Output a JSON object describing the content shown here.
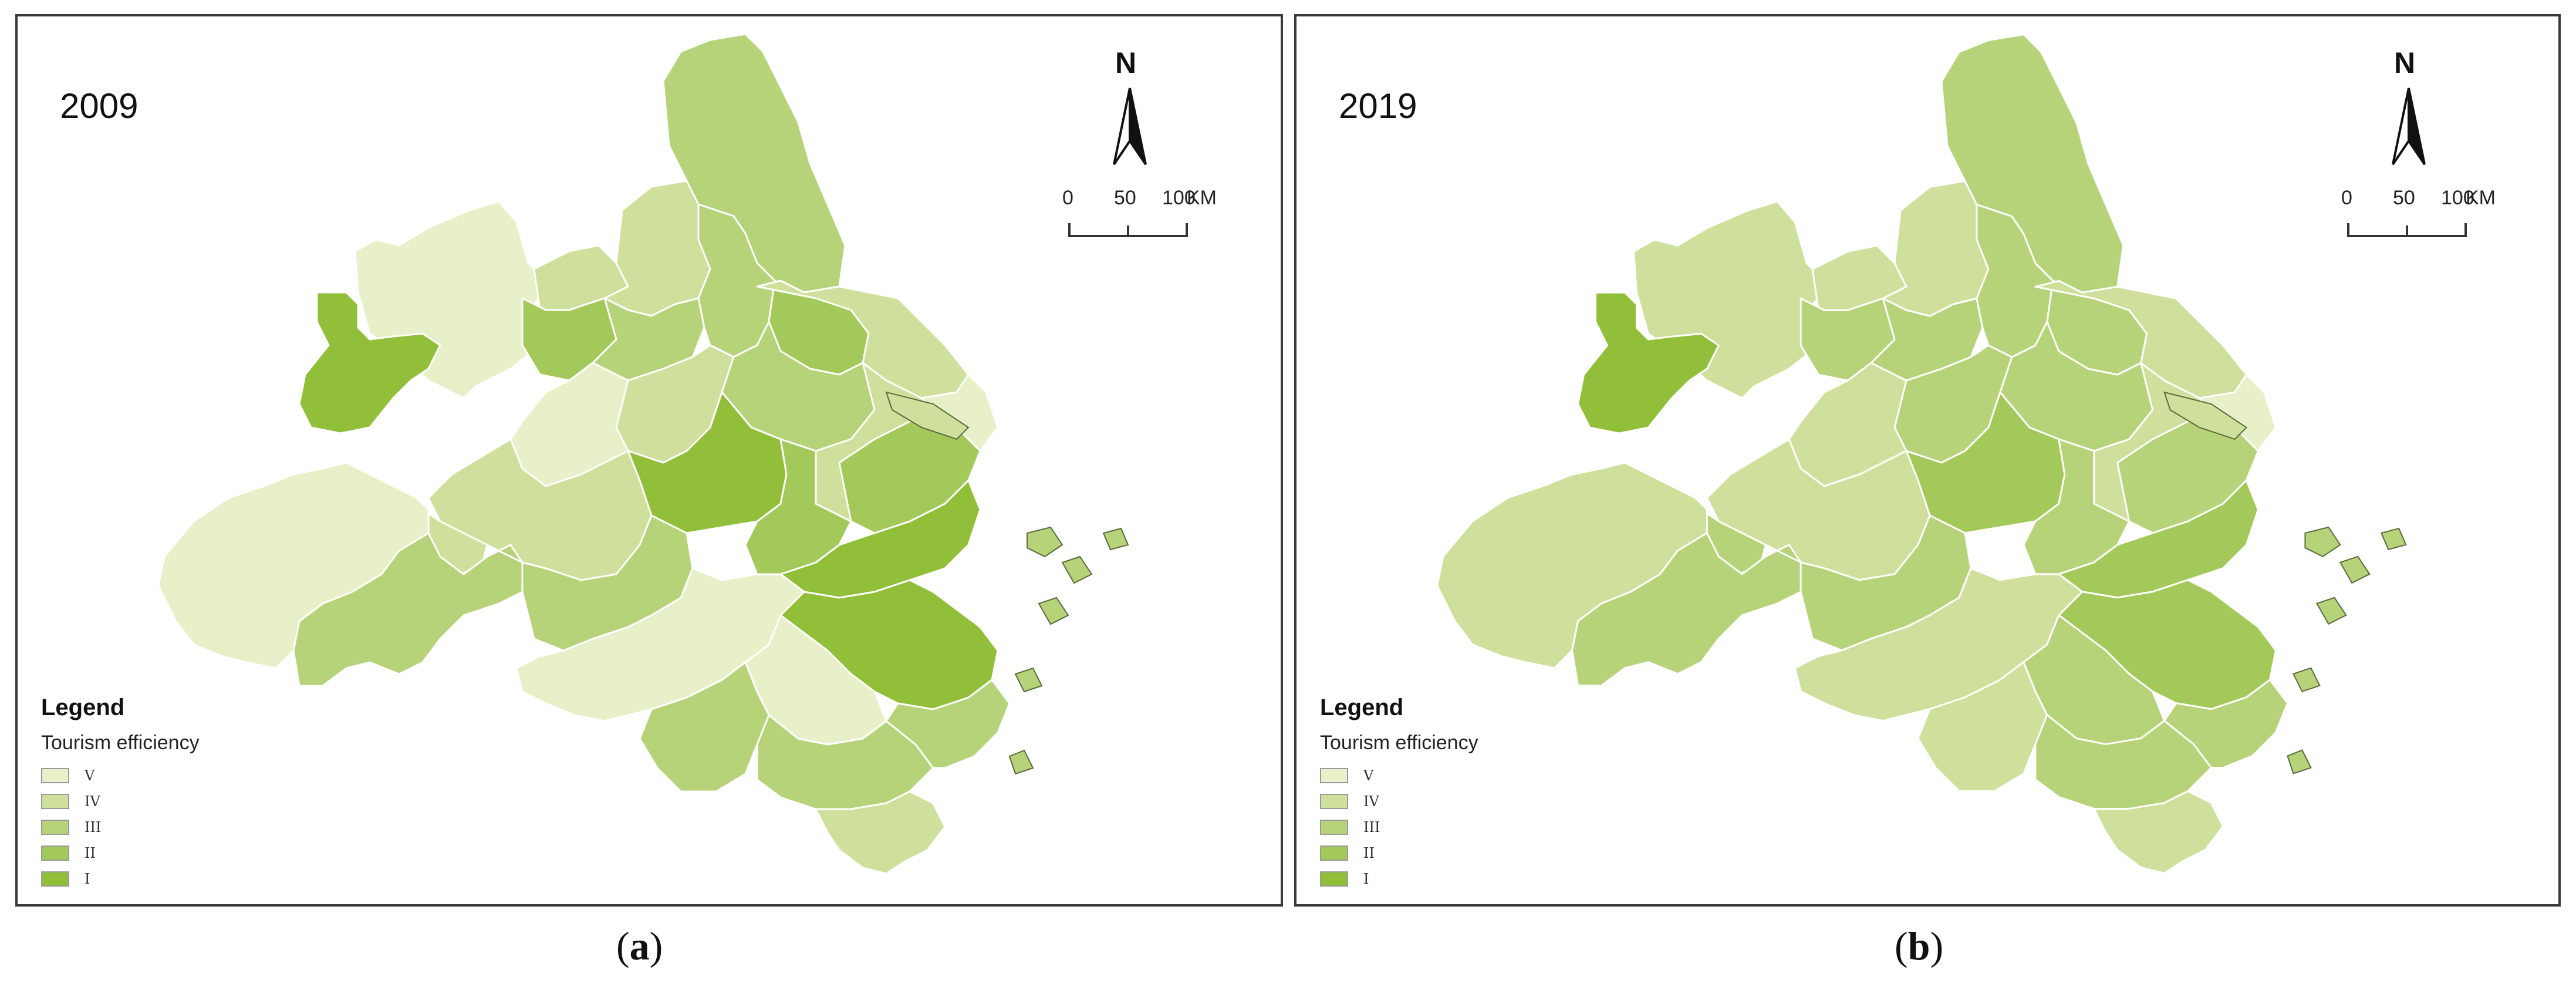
{
  "legend_title": "Legend",
  "legend_subtitle": "Tourism efficiency",
  "classes": [
    {
      "label": "V",
      "color": "#e7f0c8"
    },
    {
      "label": "IV",
      "color": "#cfe09c"
    },
    {
      "label": "III",
      "color": "#b7d37a"
    },
    {
      "label": "II",
      "color": "#a3c95a"
    },
    {
      "label": "I",
      "color": "#92bf3a"
    }
  ],
  "north_label": "N",
  "scale_ticks": [
    "0",
    "50",
    "100"
  ],
  "scale_unit": "KM",
  "panels": [
    {
      "year": "2009",
      "caption_letter": "a",
      "region_classes": [
        "V",
        "IV",
        "I",
        "IV",
        "III",
        "II",
        "III",
        "III",
        "II",
        "IV",
        "IV",
        "III",
        "V",
        "IV",
        "V",
        "IV",
        "I",
        "II",
        "II",
        "IV",
        "V",
        "III",
        "III",
        "I",
        "V",
        "I",
        "V",
        "III",
        "III",
        "IV",
        "III"
      ]
    },
    {
      "year": "2019",
      "caption_letter": "b",
      "region_classes": [
        "IV",
        "IV",
        "I",
        "IV",
        "III",
        "III",
        "III",
        "III",
        "III",
        "IV",
        "III",
        "III",
        "V",
        "IV",
        "IV",
        "IV",
        "II",
        "III",
        "III",
        "III",
        "IV",
        "III",
        "III",
        "II",
        "IV",
        "II",
        "III",
        "IV",
        "III",
        "IV",
        "III"
      ]
    }
  ]
}
